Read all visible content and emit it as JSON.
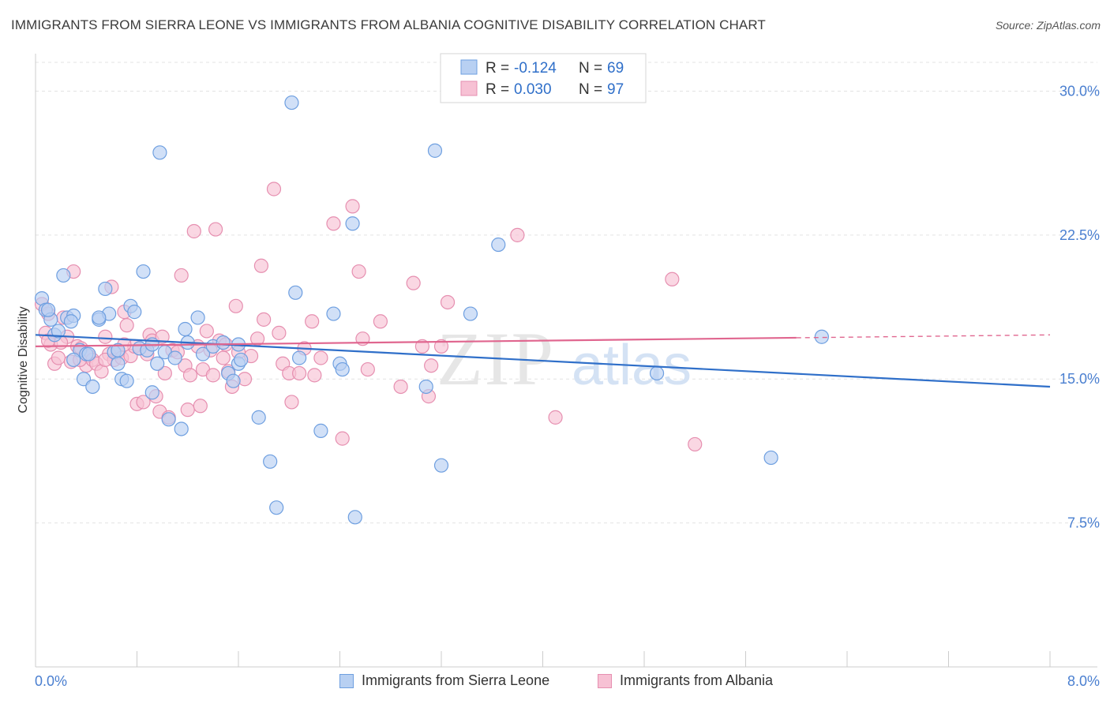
{
  "title": "IMMIGRANTS FROM SIERRA LEONE VS IMMIGRANTS FROM ALBANIA COGNITIVE DISABILITY CORRELATION CHART",
  "source": "Source: ZipAtlas.com",
  "watermark": {
    "zip": "ZIP",
    "atlas": "atlas"
  },
  "colors": {
    "blue_fill": "#b8d0f2",
    "blue_stroke": "#6e9fe0",
    "blue_line": "#2f6fc9",
    "pink_fill": "#f7c1d4",
    "pink_stroke": "#e68fb0",
    "pink_line": "#e0668f",
    "axis_text": "#4a7fd0",
    "grid": "#e3e3e3"
  },
  "legend": {
    "rows": [
      {
        "r_label": "R =",
        "r_value": "-0.124",
        "n_label": "N =",
        "n_value": "69"
      },
      {
        "r_label": "R =",
        "r_value": "0.030",
        "n_label": "N =",
        "n_value": "97"
      }
    ]
  },
  "bottom_legend": [
    "Immigrants from Sierra Leone",
    "Immigrants from Albania"
  ],
  "chart_data": {
    "type": "scatter",
    "title": "IMMIGRANTS FROM SIERRA LEONE VS IMMIGRANTS FROM ALBANIA COGNITIVE DISABILITY CORRELATION CHART",
    "xlabel": "",
    "ylabel": "Cognitive Disability",
    "xlim": [
      0,
      8.0
    ],
    "ylim": [
      0,
      31.5
    ],
    "x_tick_labels": [
      "0.0%",
      "8.0%"
    ],
    "y_ticks": [
      7.5,
      15.0,
      22.5,
      30.0
    ],
    "y_tick_labels": [
      "7.5%",
      "15.0%",
      "22.5%",
      "30.0%"
    ],
    "series": [
      {
        "name": "Immigrants from Sierra Leone",
        "color": "blue",
        "trend": {
          "x0": 0.0,
          "y0": 17.3,
          "x1": 8.0,
          "y1": 14.6,
          "solid_until": 8.0
        },
        "points": [
          [
            0.05,
            19.2
          ],
          [
            0.08,
            18.6
          ],
          [
            0.12,
            18.1
          ],
          [
            0.15,
            17.3
          ],
          [
            0.22,
            20.4
          ],
          [
            0.25,
            18.2
          ],
          [
            0.3,
            18.3
          ],
          [
            0.35,
            16.5
          ],
          [
            0.38,
            15.0
          ],
          [
            0.4,
            16.3
          ],
          [
            0.45,
            14.6
          ],
          [
            0.5,
            18.1
          ],
          [
            0.55,
            19.7
          ],
          [
            0.58,
            18.4
          ],
          [
            0.62,
            16.4
          ],
          [
            0.65,
            15.8
          ],
          [
            0.68,
            15.0
          ],
          [
            0.72,
            14.9
          ],
          [
            0.75,
            18.8
          ],
          [
            0.78,
            18.5
          ],
          [
            0.82,
            16.6
          ],
          [
            0.85,
            20.6
          ],
          [
            0.88,
            16.5
          ],
          [
            0.92,
            14.3
          ],
          [
            0.96,
            15.8
          ],
          [
            0.98,
            26.8
          ],
          [
            1.02,
            16.4
          ],
          [
            1.05,
            12.9
          ],
          [
            1.1,
            16.1
          ],
          [
            1.15,
            12.4
          ],
          [
            1.18,
            17.6
          ],
          [
            1.2,
            16.9
          ],
          [
            1.28,
            18.2
          ],
          [
            1.32,
            16.3
          ],
          [
            1.4,
            16.7
          ],
          [
            1.48,
            16.9
          ],
          [
            1.52,
            15.3
          ],
          [
            1.56,
            14.9
          ],
          [
            1.6,
            15.8
          ],
          [
            1.62,
            16.0
          ],
          [
            1.76,
            13.0
          ],
          [
            1.85,
            10.7
          ],
          [
            1.9,
            8.3
          ],
          [
            2.02,
            29.4
          ],
          [
            2.05,
            19.5
          ],
          [
            2.08,
            16.1
          ],
          [
            2.25,
            12.3
          ],
          [
            2.35,
            18.4
          ],
          [
            2.4,
            15.8
          ],
          [
            2.42,
            15.5
          ],
          [
            2.5,
            23.1
          ],
          [
            2.52,
            7.8
          ],
          [
            3.08,
            14.6
          ],
          [
            3.15,
            26.9
          ],
          [
            3.2,
            10.5
          ],
          [
            3.43,
            18.4
          ],
          [
            3.65,
            22.0
          ],
          [
            4.9,
            15.3
          ],
          [
            5.8,
            10.9
          ],
          [
            6.2,
            17.2
          ],
          [
            0.1,
            18.6
          ],
          [
            0.18,
            17.5
          ],
          [
            0.28,
            18.0
          ],
          [
            0.42,
            16.3
          ],
          [
            1.6,
            16.8
          ],
          [
            0.92,
            16.8
          ],
          [
            0.5,
            18.2
          ],
          [
            0.65,
            16.5
          ],
          [
            0.3,
            16.0
          ]
        ]
      },
      {
        "name": "Immigrants from Albania",
        "color": "pink",
        "trend": {
          "x0": 0.0,
          "y0": 16.7,
          "x1": 8.0,
          "y1": 17.3,
          "solid_until": 6.0
        },
        "points": [
          [
            0.05,
            18.9
          ],
          [
            0.08,
            17.4
          ],
          [
            0.12,
            16.8
          ],
          [
            0.15,
            15.8
          ],
          [
            0.18,
            16.1
          ],
          [
            0.22,
            18.2
          ],
          [
            0.25,
            17.2
          ],
          [
            0.28,
            15.9
          ],
          [
            0.3,
            20.6
          ],
          [
            0.33,
            16.7
          ],
          [
            0.36,
            16.6
          ],
          [
            0.4,
            15.7
          ],
          [
            0.42,
            16.2
          ],
          [
            0.45,
            16.0
          ],
          [
            0.48,
            15.8
          ],
          [
            0.52,
            15.4
          ],
          [
            0.55,
            17.2
          ],
          [
            0.58,
            16.3
          ],
          [
            0.6,
            19.8
          ],
          [
            0.62,
            16.0
          ],
          [
            0.65,
            16.4
          ],
          [
            0.68,
            16.1
          ],
          [
            0.7,
            18.5
          ],
          [
            0.72,
            17.8
          ],
          [
            0.75,
            16.2
          ],
          [
            0.78,
            16.7
          ],
          [
            0.8,
            13.7
          ],
          [
            0.82,
            16.6
          ],
          [
            0.85,
            13.8
          ],
          [
            0.88,
            16.3
          ],
          [
            0.9,
            17.3
          ],
          [
            0.92,
            17.0
          ],
          [
            0.95,
            14.1
          ],
          [
            0.98,
            13.3
          ],
          [
            1.0,
            17.2
          ],
          [
            1.02,
            15.3
          ],
          [
            1.05,
            13.0
          ],
          [
            1.08,
            16.5
          ],
          [
            1.12,
            16.4
          ],
          [
            1.15,
            20.4
          ],
          [
            1.18,
            15.7
          ],
          [
            1.2,
            13.4
          ],
          [
            1.22,
            15.2
          ],
          [
            1.25,
            22.7
          ],
          [
            1.28,
            16.7
          ],
          [
            1.3,
            13.6
          ],
          [
            1.32,
            15.5
          ],
          [
            1.35,
            17.5
          ],
          [
            1.38,
            16.5
          ],
          [
            1.4,
            15.2
          ],
          [
            1.42,
            22.8
          ],
          [
            1.45,
            17.0
          ],
          [
            1.48,
            16.1
          ],
          [
            1.5,
            16.8
          ],
          [
            1.52,
            15.4
          ],
          [
            1.55,
            14.6
          ],
          [
            1.58,
            18.8
          ],
          [
            1.6,
            16.4
          ],
          [
            1.65,
            15.0
          ],
          [
            1.7,
            16.2
          ],
          [
            1.75,
            17.1
          ],
          [
            1.78,
            20.9
          ],
          [
            1.8,
            18.1
          ],
          [
            1.88,
            24.9
          ],
          [
            1.92,
            17.4
          ],
          [
            1.95,
            15.8
          ],
          [
            2.0,
            15.3
          ],
          [
            2.02,
            13.8
          ],
          [
            2.08,
            15.3
          ],
          [
            2.12,
            16.6
          ],
          [
            2.18,
            18.0
          ],
          [
            2.2,
            15.2
          ],
          [
            2.25,
            16.1
          ],
          [
            2.35,
            23.1
          ],
          [
            2.42,
            11.9
          ],
          [
            2.5,
            24.0
          ],
          [
            2.55,
            20.6
          ],
          [
            2.58,
            17.1
          ],
          [
            2.62,
            15.5
          ],
          [
            2.72,
            18.0
          ],
          [
            2.88,
            14.6
          ],
          [
            2.98,
            20.0
          ],
          [
            3.05,
            16.7
          ],
          [
            3.1,
            14.1
          ],
          [
            3.12,
            15.7
          ],
          [
            3.2,
            16.7
          ],
          [
            3.25,
            19.0
          ],
          [
            3.8,
            22.5
          ],
          [
            4.1,
            13.0
          ],
          [
            5.02,
            20.2
          ],
          [
            5.2,
            11.6
          ],
          [
            0.1,
            17.0
          ],
          [
            0.2,
            16.9
          ],
          [
            0.35,
            16.0
          ],
          [
            0.55,
            16.0
          ],
          [
            0.7,
            16.8
          ],
          [
            0.1,
            18.4
          ]
        ]
      }
    ]
  }
}
